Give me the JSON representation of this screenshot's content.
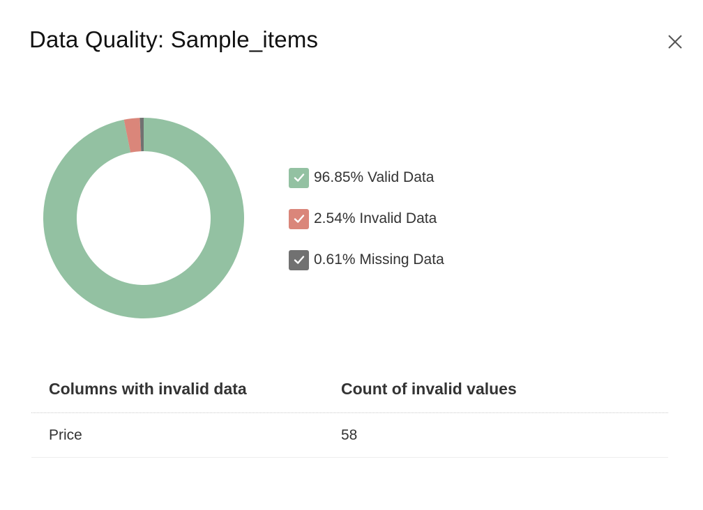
{
  "dialog": {
    "title": "Data Quality: Sample_items",
    "close_icon": "close-icon"
  },
  "colors": {
    "valid": "#93c1a2",
    "invalid": "#da867a",
    "missing": "#717171"
  },
  "chart_data": {
    "type": "pie",
    "donut": true,
    "slices": [
      {
        "label": "Valid Data",
        "value": 96.85,
        "color": "#93c1a2"
      },
      {
        "label": "Invalid Data",
        "value": 2.54,
        "color": "#da867a"
      },
      {
        "label": "Missing Data",
        "value": 0.61,
        "color": "#717171"
      }
    ],
    "legend_placement": "right"
  },
  "legend": [
    {
      "text": "96.85% Valid Data",
      "color": "#93c1a2",
      "icon": "check-icon"
    },
    {
      "text": "2.54% Invalid Data",
      "color": "#da867a",
      "icon": "check-icon"
    },
    {
      "text": "0.61% Missing Data",
      "color": "#717171",
      "icon": "check-icon"
    }
  ],
  "table": {
    "headers": [
      "Columns with invalid data",
      "Count of invalid values"
    ],
    "rows": [
      [
        "Price",
        "58"
      ]
    ]
  }
}
